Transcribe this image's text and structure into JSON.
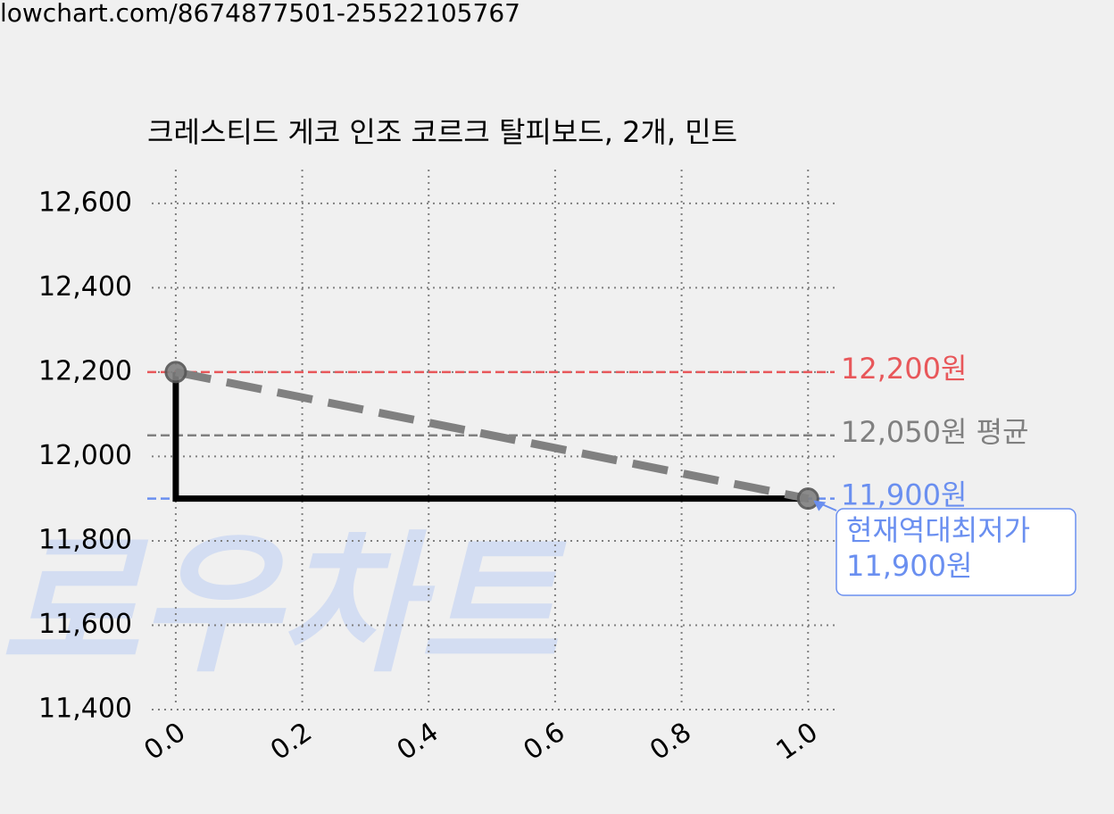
{
  "url": "lowchart.com/8674877501-25522105767",
  "chart_data": {
    "type": "line",
    "title": "크레스티드 게코 인조 코르크 탈피보드, 2개, 민트",
    "watermark": "로우차트",
    "xlim": [
      -0.038,
      1.042
    ],
    "ylim": [
      11400,
      12680
    ],
    "xticks": [
      {
        "value": 0,
        "label": "0.0"
      },
      0.2,
      0.4,
      0.6,
      0.8,
      {
        "value": 1,
        "label": "1.0"
      }
    ],
    "yticks": [
      {
        "value": 11400,
        "label": "11,400"
      },
      {
        "value": 11600,
        "label": "11,600"
      },
      {
        "value": 11800,
        "label": "11,800"
      },
      {
        "value": 12000,
        "label": "12,000"
      },
      {
        "value": 12200,
        "label": "12,200"
      },
      {
        "value": 12400,
        "label": "12,400"
      },
      {
        "value": 12600,
        "label": "12,600"
      }
    ],
    "grid": true,
    "series": [
      {
        "color": "#000000",
        "style": "solid",
        "x": [
          0,
          0,
          1
        ],
        "values": [
          12200,
          11900,
          11900
        ]
      },
      {
        "color": "#808080",
        "style": "dashed",
        "markers": true,
        "x": [
          0,
          1
        ],
        "values": [
          12200,
          11900
        ]
      }
    ],
    "hlines": [
      {
        "value": 12200,
        "label": "12,200원",
        "color": "#e8575a"
      },
      {
        "value": 12050,
        "label": "12,050원 평균",
        "color": "#808080"
      },
      {
        "value": 11900,
        "label": "11,900원",
        "color": "#6a8ff0"
      }
    ],
    "annotation": {
      "x": 1,
      "y": 11900,
      "lines": [
        "현재역대최저가",
        "11,900원"
      ],
      "color": "#6a8ff0"
    }
  }
}
